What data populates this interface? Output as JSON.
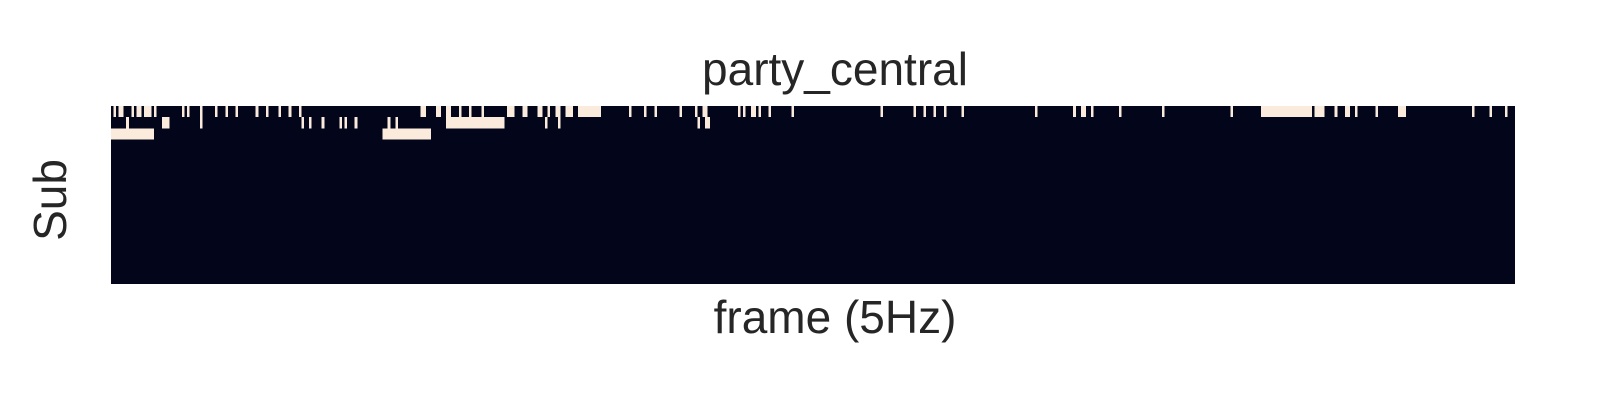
{
  "chart_data": {
    "type": "heatmap",
    "title": "party_central",
    "xlabel": "frame (5Hz)",
    "ylabel": "Sub",
    "n_rows": 16,
    "value_range": [
      0,
      1
    ],
    "colormap": {
      "0": "#03051a",
      "1": "#faebdd"
    },
    "rows": [
      "0101100010110111010000000000101000010000010001000100000001000100001000100010000000000000000000000000000000000000000000000011000011001100010001000010000000001110001100001100100110011100111111111000000000001000001000100000000010000010011000000000000101001101000100000000100000000000000000000000000000000001000000000000100010001000100000010000000000000000000000000000100000000000000100110010000000000100000000000000001000000000000000000000000001000000000001111111111111111111101111000010001100100000001000000001110000000000000000000000000010000001000001000",
      "0000001000000000000011100000000000010000000000000000000000000000000000000001001000010000001010001000000000000100100000000000000000001111111111111111111111100000000000000001000010000000000000000000000000000000000000000000000000000001001100000000000000000000000000000000000000000000000000000000000000000000000000000000000000000000000000000000000000000000000000000000000000000000000000000000000000000000000000000000000000000000000000000000000000000000000000000000000000000000000000000000000000000000000000000000000000000000000000000000000000000000000000000000000001",
      "1111111111111111100000000000000000000000000000000000000000000000000000000000000000000000000000000000000000011111111111111111110000000000000000000000000000000000000000000000000000000000000000000000000000000000000000000000000000000000000000000000000000000000000000000000000000000000000000000000000000000000000000000000000000000000000000000000000000000000000000000000000000000000000000000000000000000000000000000000000000000000000000000000000000000000000000000000000000000000000000000000000000000000000000000000000000000000000000000000000000000000000000000000000111111110",
      "0000000000000000000000000000000000000000000000000000000000000000000000000000000000000000000000000000000000000000000000000000000000000000000000000000000000000000000000000000000000000000000000000000000000000000000000000000000000000000000000000000000000000000000000000000000000000000000000000000000000000000000000000000000000000000000000000000000000000000000000000000000000000000000000000000000000000000000000000000000000000000000000000000000000000000000000000000000000000000000000000000000000000000000000000000000000000000000000000000000000000000000000000000000000000000",
      "0000000000000000000000000000000000000000000000000000000000000000000000000000000000000000000000000000000000000000000000000000000000000000000000000000000000000000000000000000000000000000000000000000000000000000000000000000000000000000000000000000000000000000000000000000000000000000000000000000000000000000000000000000000000000000000000000000000000000000000000000000000000000000000000000000000000000000000000000000000000000000000000000000000000000000000000000000000000000000000000000000000000000000000000000000000000000000000000000000000000000000000000000000000000000",
      "0000000000000000000000000000000000000000000000000000000000000000000000000000000000000000000000000000000000000000000000000000000000000000000000000000000000000000000000000000000000000000000000000000000000000000000000000000000000000000000000000000000000000000000000000000000000000000000000000000000000000000000000000000000000000000000000000000000000000000000000000000000000000000000000000000000000000000000000000000000000000000000000000000000000000000000000000000000000000000000000000000000000000000000000000000000000000000000000000000000000000000000000000000000000000",
      "0000000000000000000000000000000000000000000000000000000000000000000000000000000000000000000000000000000000000000000000000000000000000000000000000000000000000000000000000000000000000000000000000000000000000000000000000000000000000000000000000000000000000000000000000000000000000000000000000000000000000000000000000000000000000000000000000000000000000000000000000000000000000000000000000000000000000000000000000000000000000000000000000000000000000000000000000000000000000000000000000000000000000000000000000000000000000000000000000000000000000000000000000000000000000",
      "0000000000000000000000000000000000000000000000000000000000000000000000000000000000000000000000000000000000000000000000000000000000000000000000000000000000000000000000000000000000000000000000000000000000000000000000000000000000000000000000000000000000000000000000000000000000000000000000000000000000000000000000000000000000000000000000000000000000000000000000000000000000000000000000000000000000000000000000000000000000000000000000000000000000000000000000000000000000000000000000000000000000000000000000000000000000000000000000000000000000000000000000000000000000000",
      "0000000000000000000000000000000000000000000000000000000000000000000000000000000000000000000000000000000000000000000000000000000000000000000000000000000000000000000000000000000000000000000000000000000000000000000000000000000000000000000000000000000000000000000000000000000000000000000000000000000000000000000000000000000000000000000000000000000000000000000000000000000000000000000000000000000000000000000000000000000000000000000000000000000000000000000000000000000000000000000000000000000000000000000000000000000000000000000000000000000000000000000000000000000000000",
      "0000000000000000000000000000000000000000000000000000000000000000000000000000000000000000000000000000000000000000000000000000000000000000000000000000000000000000000000000000000000000000000000000000000000000000000000000000000000000000000000000000000000000000000000000000000000000000000000000000000000000000000000000000000000000000000000000000000000000000000000000000000000000000000000000000000000000000000000000000000000000000000000000000000000000000000000000000000000000000000000000000000000000000000000000000000000000000000000000000000000000000000000000000000000000",
      "0000000000000000000000000000000000000000000000000000000000000000000000000000000000000000000000000000000000000000000000000000000000000000000000000000000000000000000000000000000000000000000000000000000000000000000000000000000000000000000000000000000000000000000000000000000000000000000000000000000000000000000000000000000000000000000000000000000000000000000000000000000000000000000000000000000000000000000000000000000000000000000000000000000000000000000000000000000000000000000000000000000000000000000000000000000000000000000000000000000000000000000000000000000000000",
      "0000000000000000000000000000000000000000000000000000000000000000000000000000000000000000000000000000000000000000000000000000000000000000000000000000000000000000000000000000000000000000000000000000000000000000000000000000000000000000000000000000000000000000000000000000000000000000000000000000000000000000000000000000000000000000000000000000000000000000000000000000000000000000000000000000000000000000000000000000000000000000000000000000000000000000000000000000000000000000000000000000000000000000000000000000000000000000000000000000000000000000000000000000000000000",
      "0000000000000000000000000000000000000000000000000000000000000000000000000000000000000000000000000000000000000000000000000000000000000000000000000000000000000000000000000000000000000000000000000000000000000000000000000000000000000000000000000000000000000000000000000000000000000000000000000000000000000000000000000000000000000000000000000000000000000000000000000000000000000000000000000000000000000000000000000000000000000000000000000000000000000000000000000000000000000000000000000000000000000000000000000000000000000000000000000000000000000000000000000000000000000",
      "0000000000000000000000000000000000000000000000000000000000000000000000000000000000000000000000000000000000000000000000000000000000000000000000000000000000000000000000000000000000000000000000000000000000000000000000000000000000000000000000000000000000000000000000000000000000000000000000000000000000000000000000000000000000000000000000000000000000000000000000000000000000000000000000000000000000000000000000000000000000000000000000000000000000000000000000000000000000000000000000000000000000000000000000000000000000000000000000000000000000000000000000000000000000000",
      "0000000000000000000000000000000000000000000000000000000000000000000000000000000000000000000000000000000000000000000000000000000000000000000000000000000000000000000000000000000000000000000000000000000000000000000000000000000000000000000000000000000000000000000000000000000000000000000000000000000000000000000000000000000000000000000000000000000000000000000000000000000000000000000000000000000000000000000000000000000000000000000000000000000000000000000000000000000000000000000000000000000000000000000000000000000000000000000000000000000000000000000000000000000000000",
      "0000000000000000000000000000000000000000000000000000000000000000000000000000000000000000000000000000000000000000000000000000000000000000000000000000000000000000000000000000000000000000000000000000000000000000000000000000000000000000000000000000000000000000000000000000000000000000000000000000000000000000000000000000000000000000000000000000000000000000000000000000000000000000000000000000000000000000000000000000000000000000000000000000000000000000000000000000000000000000000000000000000000000000000000000000000000000000000000000000000000000000000000000000000000000"
    ]
  }
}
